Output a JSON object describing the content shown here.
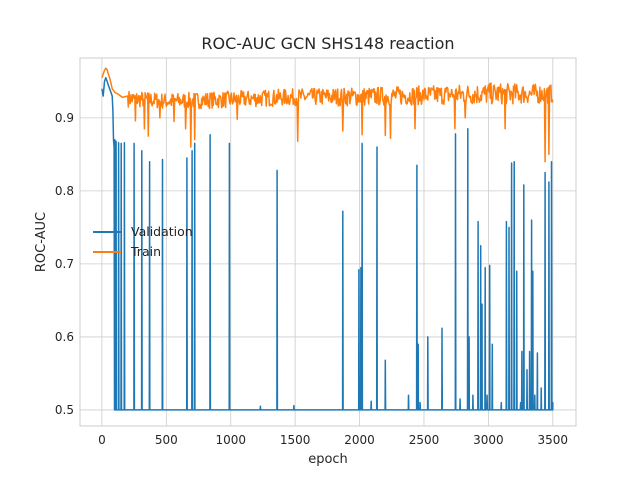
{
  "chart_data": {
    "type": "line",
    "title": "ROC-AUC GCN SHS148 reaction",
    "xlabel": "epoch",
    "ylabel": "ROC-AUC",
    "xlim": [
      -170,
      3680
    ],
    "ylim": [
      0.478,
      0.982
    ],
    "xticks": [
      0,
      500,
      1000,
      1500,
      2000,
      2500,
      3000,
      3500
    ],
    "yticks": [
      0.5,
      0.6,
      0.7,
      0.8,
      0.9
    ],
    "ytick_labels": [
      "0.5",
      "0.6",
      "0.7",
      "0.8",
      "0.9"
    ],
    "grid": true,
    "legend_position": "center-left",
    "series": [
      {
        "name": "Validation",
        "color": "#1f77b4",
        "baseline": 0.5,
        "start": [
          [
            0,
            0.94
          ],
          [
            10,
            0.93
          ],
          [
            20,
            0.95
          ],
          [
            30,
            0.955
          ],
          [
            40,
            0.95
          ],
          [
            50,
            0.945
          ],
          [
            60,
            0.94
          ],
          [
            70,
            0.935
          ],
          [
            80,
            0.93
          ],
          [
            85,
            0.91
          ],
          [
            90,
            0.87
          ],
          [
            95,
            0.86
          ],
          [
            100,
            0.5
          ]
        ],
        "spikes": [
          [
            100,
            0.87
          ],
          [
            110,
            0.868
          ],
          [
            130,
            0.866
          ],
          [
            150,
            0.865
          ],
          [
            175,
            0.866
          ],
          [
            250,
            0.865
          ],
          [
            310,
            0.855
          ],
          [
            370,
            0.84
          ],
          [
            470,
            0.843
          ],
          [
            660,
            0.845
          ],
          [
            700,
            0.855
          ],
          [
            720,
            0.865
          ],
          [
            840,
            0.877
          ],
          [
            990,
            0.865
          ],
          [
            1230,
            0.505
          ],
          [
            1360,
            0.828
          ],
          [
            1490,
            0.506
          ],
          [
            1870,
            0.772
          ],
          [
            1995,
            0.692
          ],
          [
            2010,
            0.695
          ],
          [
            2020,
            0.865
          ],
          [
            2090,
            0.512
          ],
          [
            2135,
            0.86
          ],
          [
            2200,
            0.568
          ],
          [
            2380,
            0.52
          ],
          [
            2445,
            0.835
          ],
          [
            2455,
            0.59
          ],
          [
            2470,
            0.51
          ],
          [
            2530,
            0.6
          ],
          [
            2640,
            0.612
          ],
          [
            2745,
            0.878
          ],
          [
            2780,
            0.515
          ],
          [
            2840,
            0.885
          ],
          [
            2850,
            0.6
          ],
          [
            2880,
            0.52
          ],
          [
            2920,
            0.758
          ],
          [
            2940,
            0.725
          ],
          [
            2950,
            0.645
          ],
          [
            2975,
            0.695
          ],
          [
            2990,
            0.52
          ],
          [
            3010,
            0.698
          ],
          [
            3030,
            0.59
          ],
          [
            3100,
            0.51
          ],
          [
            3140,
            0.758
          ],
          [
            3160,
            0.75
          ],
          [
            3180,
            0.838
          ],
          [
            3200,
            0.84
          ],
          [
            3220,
            0.69
          ],
          [
            3250,
            0.51
          ],
          [
            3260,
            0.58
          ],
          [
            3275,
            0.808
          ],
          [
            3300,
            0.555
          ],
          [
            3320,
            0.58
          ],
          [
            3335,
            0.76
          ],
          [
            3345,
            0.69
          ],
          [
            3360,
            0.52
          ],
          [
            3380,
            0.578
          ],
          [
            3410,
            0.53
          ],
          [
            3440,
            0.825
          ],
          [
            3470,
            0.812
          ],
          [
            3490,
            0.84
          ],
          [
            3500,
            0.51
          ]
        ]
      },
      {
        "name": "Train",
        "color": "#ff7f0e",
        "start": [
          [
            0,
            0.955
          ],
          [
            10,
            0.96
          ],
          [
            20,
            0.965
          ],
          [
            30,
            0.968
          ],
          [
            40,
            0.966
          ],
          [
            50,
            0.96
          ],
          [
            60,
            0.955
          ],
          [
            70,
            0.948
          ],
          [
            80,
            0.94
          ],
          [
            100,
            0.935
          ],
          [
            130,
            0.932
          ],
          [
            160,
            0.928
          ],
          [
            200,
            0.93
          ]
        ],
        "band_lower": [
          [
            200,
            0.915
          ],
          [
            500,
            0.912
          ],
          [
            900,
            0.913
          ],
          [
            1500,
            0.917
          ],
          [
            2000,
            0.916
          ],
          [
            2500,
            0.918
          ],
          [
            3000,
            0.918
          ],
          [
            3500,
            0.92
          ]
        ],
        "band_upper": [
          [
            200,
            0.938
          ],
          [
            500,
            0.934
          ],
          [
            900,
            0.936
          ],
          [
            1500,
            0.94
          ],
          [
            2000,
            0.942
          ],
          [
            2500,
            0.944
          ],
          [
            3000,
            0.948
          ],
          [
            3500,
            0.946
          ]
        ],
        "dips": [
          [
            160,
            0.905
          ],
          [
            260,
            0.896
          ],
          [
            330,
            0.885
          ],
          [
            360,
            0.875
          ],
          [
            450,
            0.9
          ],
          [
            560,
            0.895
          ],
          [
            650,
            0.885
          ],
          [
            690,
            0.86
          ],
          [
            720,
            0.87
          ],
          [
            1050,
            0.898
          ],
          [
            1520,
            0.868
          ],
          [
            1870,
            0.882
          ],
          [
            2020,
            0.877
          ],
          [
            2200,
            0.876
          ],
          [
            2240,
            0.872
          ],
          [
            2430,
            0.885
          ],
          [
            2740,
            0.885
          ],
          [
            2820,
            0.9
          ],
          [
            3130,
            0.885
          ],
          [
            3440,
            0.84
          ],
          [
            3470,
            0.85
          ]
        ]
      }
    ]
  }
}
